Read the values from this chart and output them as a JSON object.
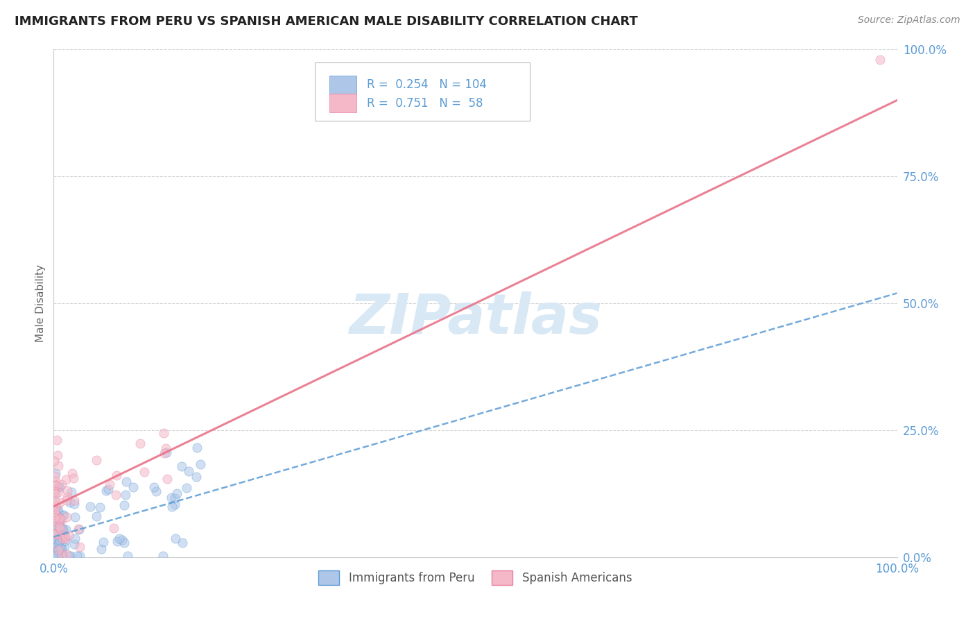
{
  "title": "IMMIGRANTS FROM PERU VS SPANISH AMERICAN MALE DISABILITY CORRELATION CHART",
  "source": "Source: ZipAtlas.com",
  "ylabel": "Male Disability",
  "y_ticks": [
    "100.0%",
    "75.0%",
    "50.0%",
    "25.0%",
    "0.0%"
  ],
  "y_tick_vals": [
    1.0,
    0.75,
    0.5,
    0.25,
    0.0
  ],
  "x_tick_labels": [
    "0.0%",
    "100.0%"
  ],
  "x_tick_vals": [
    0.0,
    1.0
  ],
  "legend_entries": [
    {
      "label": "Immigrants from Peru",
      "R": 0.254,
      "N": 104,
      "fill": "#aec6e8",
      "edge": "#5b9bd5"
    },
    {
      "label": "Spanish Americans",
      "R": 0.751,
      "N": 58,
      "fill": "#f4b8c8",
      "edge": "#e87fa0"
    }
  ],
  "watermark": "ZIPatlas",
  "watermark_color": "#d8e8f5",
  "bg_color": "#ffffff",
  "grid_color": "#c8c8c8",
  "title_color": "#222222",
  "source_color": "#888888",
  "tick_label_color": "#5b9bd5",
  "ylabel_color": "#666666",
  "blue_line": {
    "x0": 0.0,
    "x1": 1.0,
    "y0": 0.04,
    "y1": 0.52,
    "color": "#5b9bd5",
    "style": "--",
    "lw": 1.8
  },
  "pink_line": {
    "x0": 0.0,
    "x1": 1.0,
    "y0": 0.1,
    "y1": 0.9,
    "color": "#e8738a",
    "style": "-",
    "lw": 2.2
  },
  "scatter_size": 90,
  "scatter_alpha": 0.55
}
